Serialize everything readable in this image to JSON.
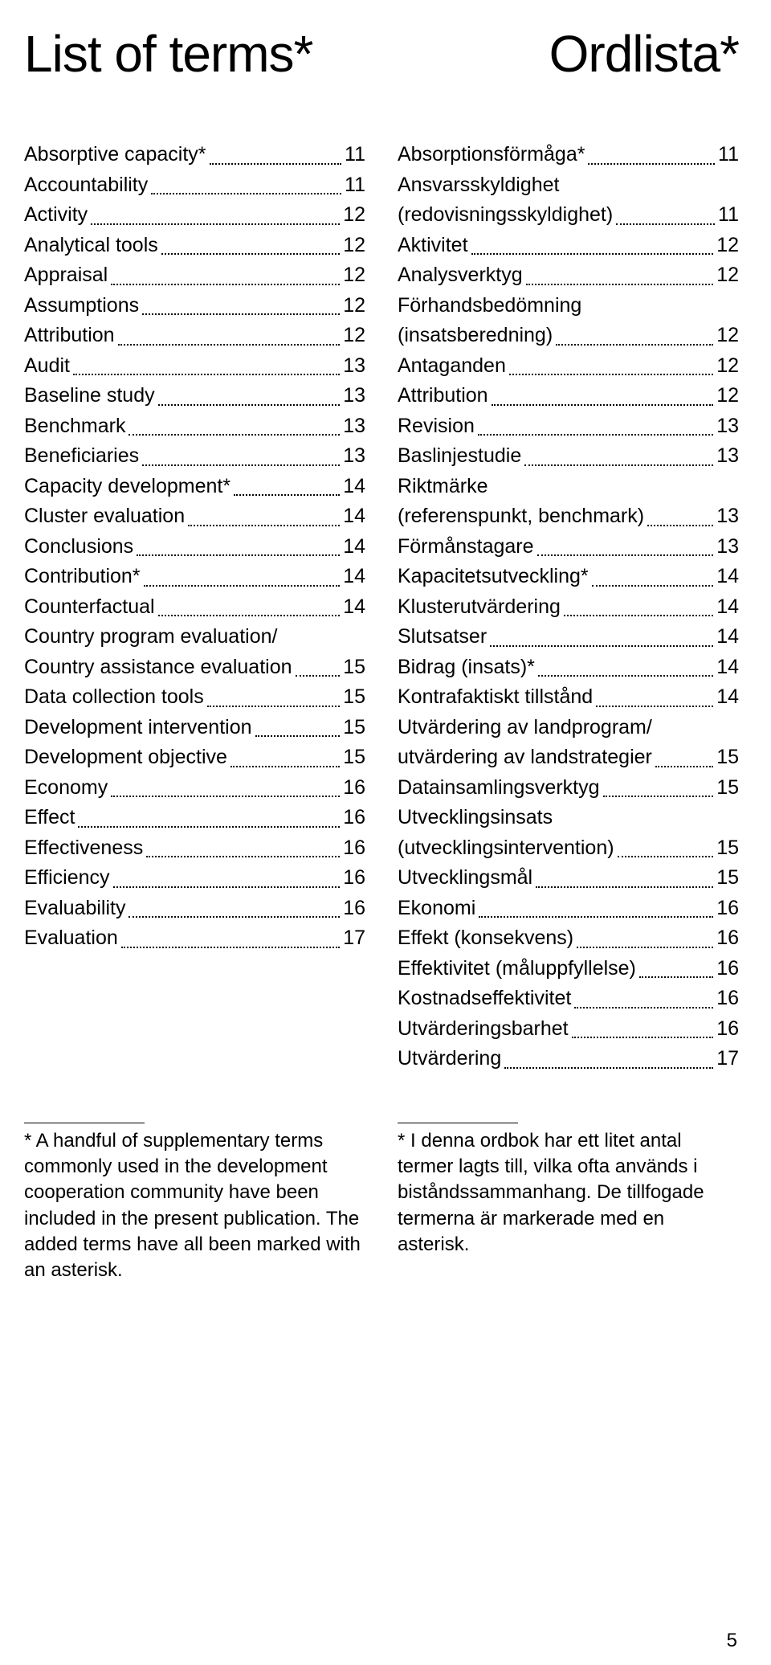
{
  "title_left": "List of terms*",
  "title_right": "Ordlista*",
  "page_number": "5",
  "left_col": [
    {
      "term": "Absorptive capacity*",
      "page": "11"
    },
    {
      "term": "Accountability",
      "page": "11"
    },
    {
      "term": "Activity",
      "page": "12"
    },
    {
      "term": "Analytical tools",
      "page": "12"
    },
    {
      "term": "Appraisal",
      "page": "12"
    },
    {
      "term": "Assumptions",
      "page": "12"
    },
    {
      "term": "Attribution",
      "page": "12"
    },
    {
      "term": "Audit",
      "page": "13"
    },
    {
      "term": "Baseline study",
      "page": "13"
    },
    {
      "term": "Benchmark",
      "page": "13"
    },
    {
      "term": "Beneficiaries",
      "page": "13"
    },
    {
      "term": "Capacity development*",
      "page": "14"
    },
    {
      "term": "Cluster evaluation",
      "page": "14"
    },
    {
      "term": "Conclusions",
      "page": "14"
    },
    {
      "term": "Contribution*",
      "page": "14"
    },
    {
      "term": "Counterfactual",
      "page": "14"
    },
    {
      "term_lines": [
        "Country program evaluation/",
        "Country assistance evaluation"
      ],
      "page": "15"
    },
    {
      "term": "Data collection tools",
      "page": "15"
    },
    {
      "term": "Development intervention",
      "page": "15"
    },
    {
      "term": "Development objective",
      "page": "15"
    },
    {
      "term": "Economy",
      "page": "16"
    },
    {
      "term": "Effect",
      "page": "16"
    },
    {
      "term": "Effectiveness",
      "page": "16"
    },
    {
      "term": "Efficiency",
      "page": "16"
    },
    {
      "term": "Evaluability",
      "page": "16"
    },
    {
      "term": "Evaluation",
      "page": "17"
    }
  ],
  "right_col": [
    {
      "term": "Absorptionsförmåga*",
      "page": "11"
    },
    {
      "term_lines": [
        "Ansvarsskyldighet",
        "(redovisningsskyldighet)"
      ],
      "page": "11"
    },
    {
      "term": "Aktivitet",
      "page": "12"
    },
    {
      "term": "Analysverktyg",
      "page": "12"
    },
    {
      "term_lines": [
        "Förhandsbedömning",
        "(insatsberedning)"
      ],
      "page": "12"
    },
    {
      "term": "Antaganden",
      "page": "12"
    },
    {
      "term": "Attribution",
      "page": "12"
    },
    {
      "term": "Revision",
      "page": "13"
    },
    {
      "term": "Baslinjestudie",
      "page": "13"
    },
    {
      "term_lines": [
        "Riktmärke",
        "(referenspunkt, benchmark)"
      ],
      "page": "13"
    },
    {
      "term": "Förmånstagare",
      "page": "13"
    },
    {
      "term": "Kapacitetsutveckling*",
      "page": "14"
    },
    {
      "term": "Klusterutvärdering",
      "page": "14"
    },
    {
      "term": "Slutsatser",
      "page": "14"
    },
    {
      "term": "Bidrag (insats)*",
      "page": "14"
    },
    {
      "term": "Kontrafaktiskt tillstånd",
      "page": "14"
    },
    {
      "term_lines": [
        "Utvärdering av landprogram/",
        "utvärdering av landstrategier"
      ],
      "page": "15"
    },
    {
      "term": "Datainsamlingsverktyg",
      "page": "15"
    },
    {
      "term_lines": [
        "Utvecklingsinsats",
        "(utvecklingsintervention)"
      ],
      "page": "15"
    },
    {
      "term": "Utvecklingsmål",
      "page": "15"
    },
    {
      "term": "Ekonomi",
      "page": "16"
    },
    {
      "term": "Effekt (konsekvens)",
      "page": "16"
    },
    {
      "term": "Effektivitet (måluppfyllelse)",
      "page": "16"
    },
    {
      "term": "Kostnadseffektivitet",
      "page": "16"
    },
    {
      "term": "Utvärderingsbarhet",
      "page": "16"
    },
    {
      "term": "Utvärdering",
      "page": "17"
    }
  ],
  "footnote_left": "* A handful of supplementary terms commonly used in the development cooperation community have been included in the present publication. The added terms have all been marked with an asterisk.",
  "footnote_right": "* I denna ordbok har ett litet antal termer lagts till, vilka ofta används i biståndssammanhang. De tillfogade termerna är markerade med en asterisk."
}
